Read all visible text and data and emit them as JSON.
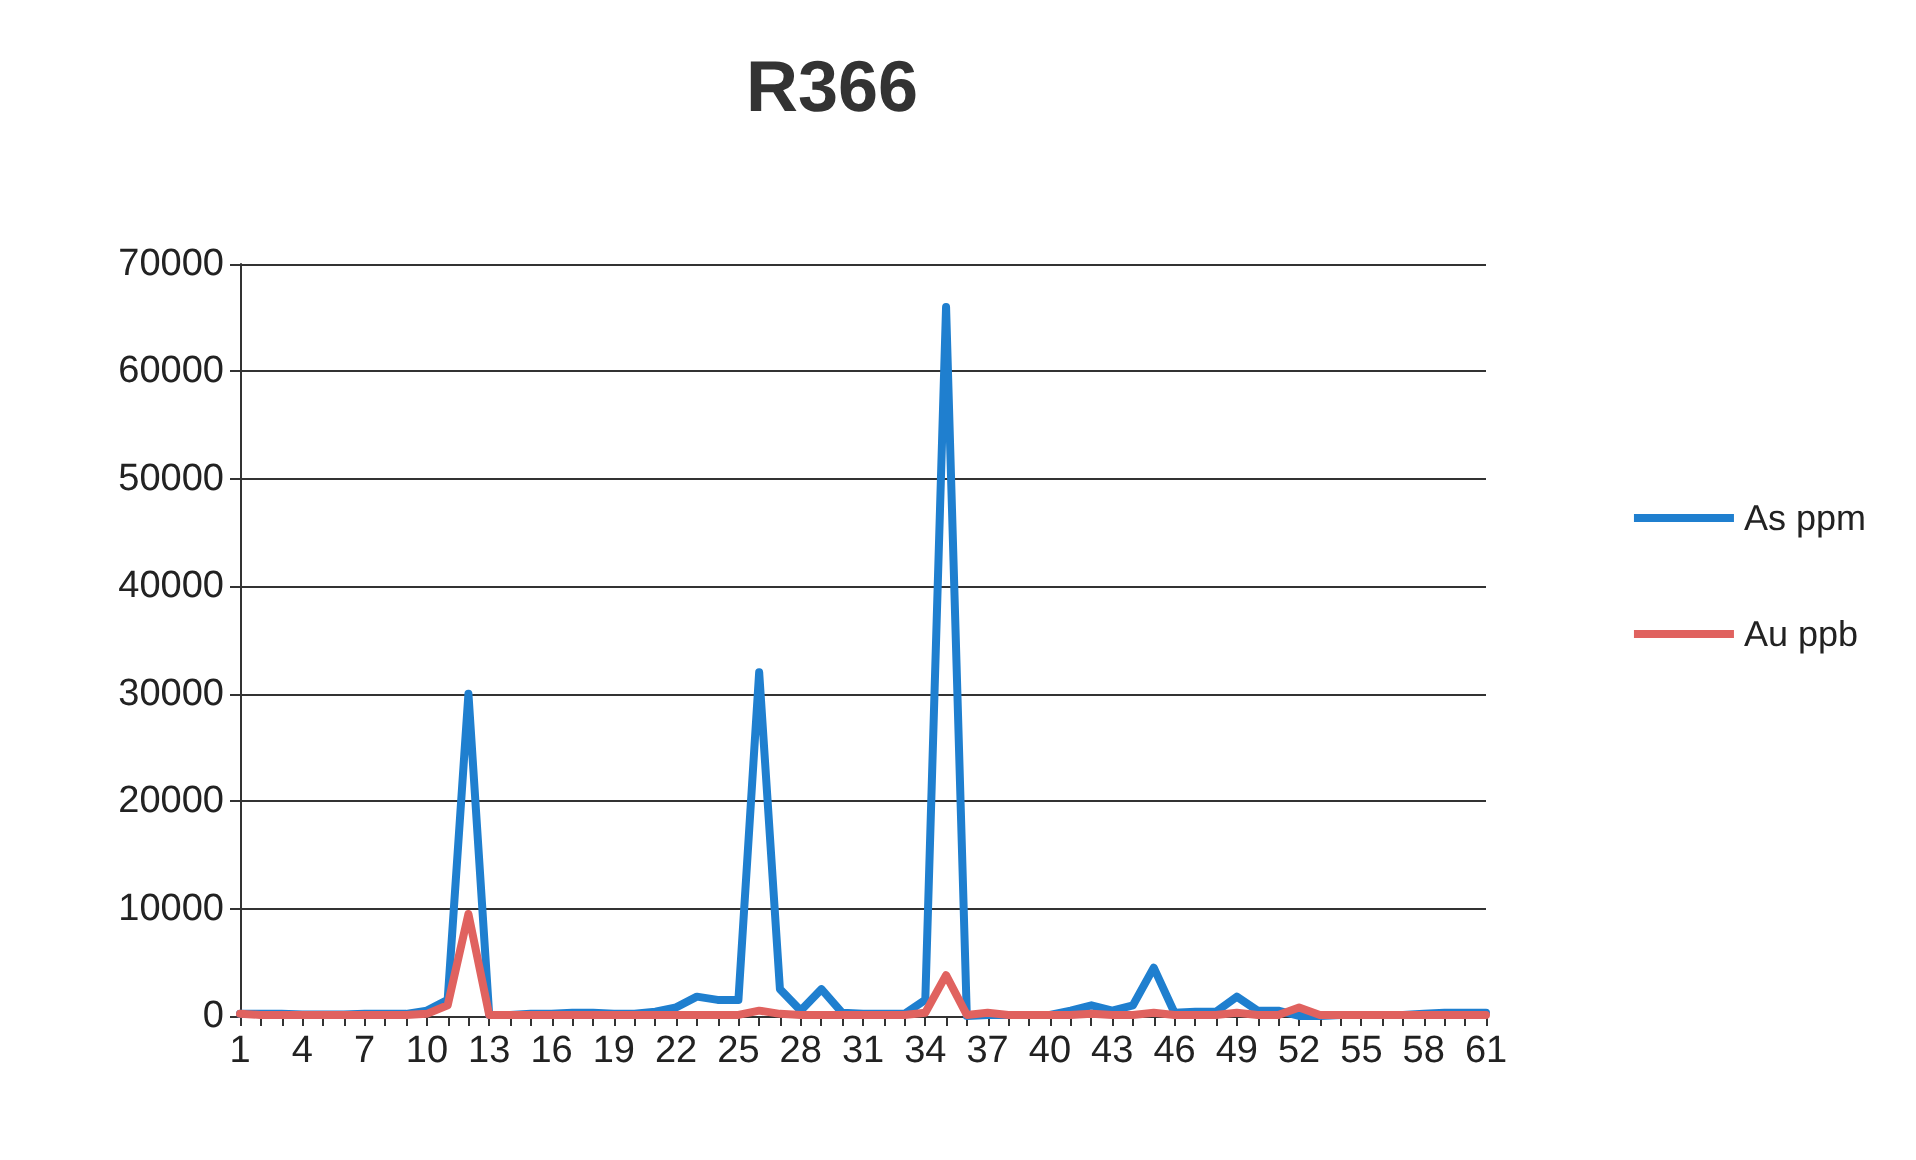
{
  "chart_data": {
    "type": "line",
    "title": "R366",
    "categories": [
      "1",
      null,
      null,
      "4",
      null,
      null,
      "7",
      null,
      null,
      "10",
      null,
      null,
      "13",
      null,
      null,
      "16",
      null,
      null,
      "19",
      null,
      null,
      "22",
      null,
      null,
      "25",
      null,
      null,
      "28",
      null,
      null,
      "31",
      null,
      null,
      "34",
      null,
      null,
      "37",
      null,
      null,
      "40",
      null,
      null,
      "43",
      null,
      null,
      "46",
      null,
      null,
      "49",
      null,
      null,
      "52",
      null,
      null,
      "55",
      null,
      null,
      "58",
      null,
      null,
      "61"
    ],
    "series": [
      {
        "name": "As ppm",
        "color": "#1f7fcf",
        "values": [
          200,
          200,
          200,
          150,
          150,
          150,
          200,
          200,
          200,
          500,
          1500,
          30000,
          100,
          100,
          200,
          200,
          300,
          300,
          200,
          200,
          400,
          800,
          1800,
          1500,
          1500,
          32000,
          2500,
          500,
          2500,
          300,
          200,
          200,
          200,
          1500,
          66000,
          0,
          100,
          100,
          100,
          100,
          500,
          1000,
          500,
          1000,
          4500,
          300,
          400,
          400,
          1800,
          500,
          500,
          0,
          0,
          100,
          100,
          100,
          100,
          200,
          300,
          300,
          300
        ]
      },
      {
        "name": "Au ppb",
        "color": "#e0625f",
        "values": [
          200,
          100,
          100,
          100,
          100,
          100,
          100,
          100,
          100,
          200,
          1000,
          9500,
          100,
          100,
          100,
          100,
          100,
          100,
          100,
          100,
          100,
          100,
          100,
          100,
          100,
          500,
          200,
          100,
          100,
          100,
          100,
          100,
          100,
          300,
          3800,
          100,
          300,
          100,
          100,
          100,
          100,
          200,
          100,
          100,
          300,
          100,
          100,
          100,
          300,
          100,
          100,
          800,
          100,
          100,
          100,
          100,
          100,
          100,
          100,
          100,
          100
        ]
      }
    ],
    "ylim": [
      0,
      70000
    ],
    "yticks": [
      0,
      10000,
      20000,
      30000,
      40000,
      50000,
      60000,
      70000
    ],
    "grid": "y",
    "legend": "right",
    "marker": "none",
    "line_style": "solid"
  }
}
